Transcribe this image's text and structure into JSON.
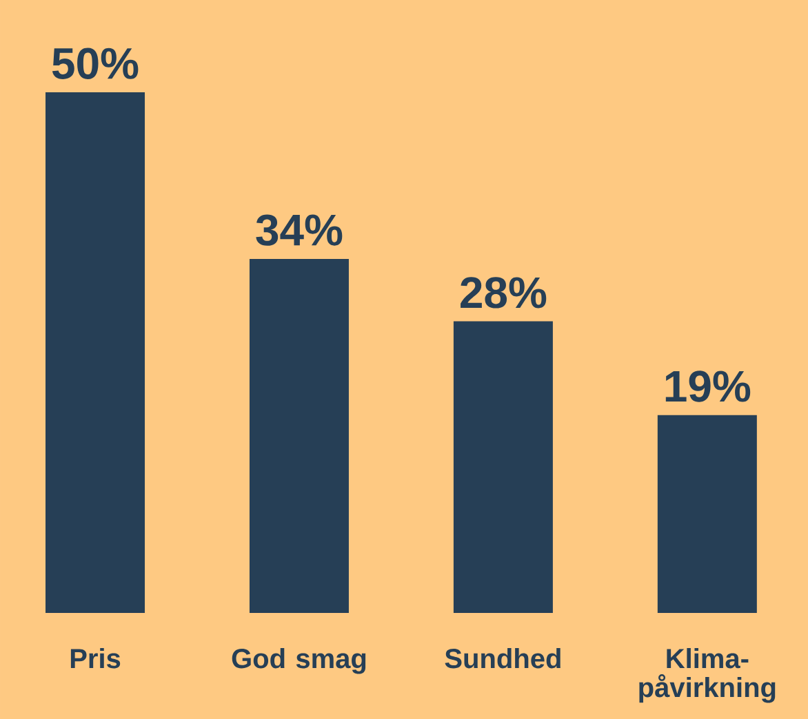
{
  "chart_data": {
    "type": "bar",
    "categories": [
      "Pris",
      "God smag",
      "Sundhed",
      "Klima-påvirkning"
    ],
    "values": [
      50,
      34,
      28,
      19
    ],
    "colors": [
      "#263f56",
      "#263f56",
      "#263f56",
      "#263f56"
    ],
    "value_labels": [
      "50%",
      "34%",
      "28%",
      "19%"
    ]
  }
}
